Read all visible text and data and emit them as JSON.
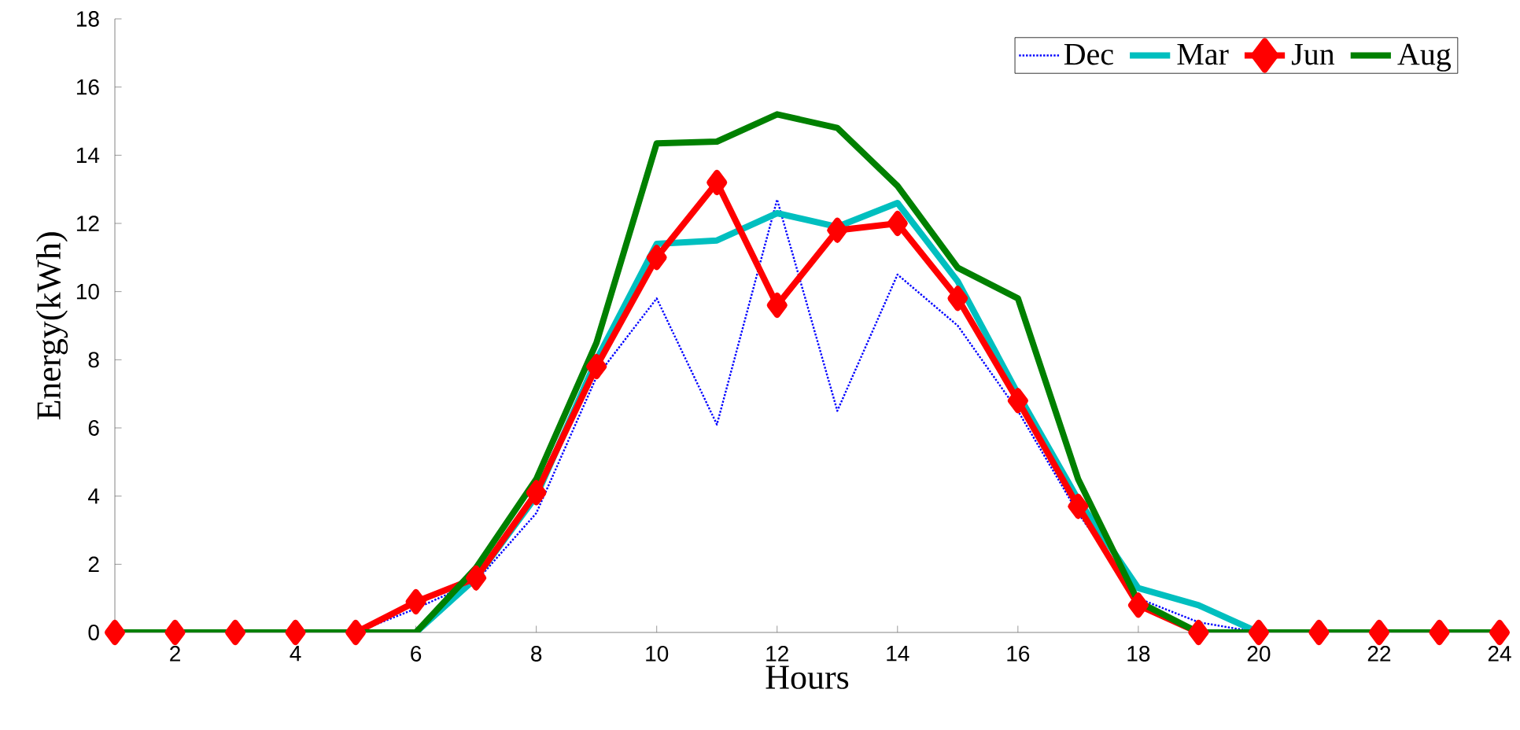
{
  "chart_data": {
    "type": "line",
    "xlabel": "Hours",
    "ylabel": "Energy(kWh)",
    "x": [
      1,
      2,
      3,
      4,
      5,
      6,
      7,
      8,
      9,
      10,
      11,
      12,
      13,
      14,
      15,
      16,
      17,
      18,
      19,
      20,
      21,
      22,
      23,
      24
    ],
    "series": [
      {
        "name": "Dec",
        "color": "#0000ff",
        "line_style": "dotted",
        "marker": "none",
        "values": [
          null,
          null,
          null,
          0,
          0,
          0.7,
          1.5,
          3.5,
          7.5,
          9.8,
          6.1,
          12.7,
          6.5,
          10.5,
          9,
          6.5,
          3.5,
          1,
          0.3,
          0,
          0,
          null,
          null,
          null
        ]
      },
      {
        "name": "Mar",
        "color": "#00bfbf",
        "line_style": "solid",
        "marker": "none",
        "values": [
          null,
          null,
          null,
          null,
          0,
          0,
          1.6,
          4,
          8,
          11.4,
          11.5,
          12.3,
          11.9,
          12.6,
          10.3,
          7,
          3.9,
          1.3,
          0.8,
          0,
          0,
          null,
          null,
          null
        ]
      },
      {
        "name": "Jun",
        "color": "#ff0000",
        "line_style": "solid",
        "marker": "diamond",
        "values": [
          0,
          0,
          0,
          0,
          0,
          0.9,
          1.6,
          4.1,
          7.8,
          11,
          13.2,
          9.6,
          11.8,
          12,
          9.8,
          6.8,
          3.7,
          0.8,
          0,
          0,
          0,
          0,
          0,
          0
        ]
      },
      {
        "name": "Aug",
        "color": "#008000",
        "line_style": "solid",
        "marker": "none",
        "values": [
          0,
          0,
          0,
          0,
          0,
          0,
          1.9,
          4.5,
          8.5,
          14.35,
          14.4,
          15.2,
          14.8,
          13.1,
          10.7,
          9.8,
          4.5,
          0.9,
          0,
          0,
          0,
          0,
          0,
          0
        ]
      }
    ],
    "xlim": [
      1,
      24
    ],
    "xticks": [
      2,
      4,
      6,
      8,
      10,
      12,
      14,
      16,
      18,
      20,
      22,
      24
    ],
    "ylim": [
      0,
      18
    ],
    "yticks": [
      0,
      2,
      4,
      6,
      8,
      10,
      12,
      14,
      16,
      18
    ],
    "grid": false,
    "legend": "top right"
  }
}
